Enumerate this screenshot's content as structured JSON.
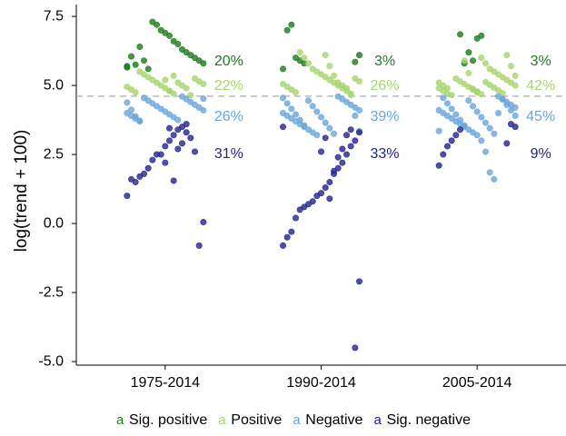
{
  "chart_data": {
    "type": "strip",
    "ylabel": "log(trend + 100)",
    "categories": [
      "1975-2014",
      "1990-2014",
      "2005-2014"
    ],
    "ylim": [
      -5.13,
      7.93
    ],
    "yticks": [
      {
        "value": -5,
        "label": "-5.0"
      },
      -2.5,
      {
        "value": 0,
        "label": "0.0"
      },
      2.5,
      {
        "value": 5,
        "label": "5.0"
      },
      7.5
    ],
    "reference_line": 4.61,
    "legend_key": "a",
    "series": [
      {
        "name": "Sig. positive",
        "color": "#1e7b1e",
        "points": [
          [
            5.7,
            5.8,
            5.9,
            6.0,
            6.1,
            6.2,
            6.3,
            6.5,
            6.6,
            6.8,
            6.9,
            7.0,
            7.2,
            7.3,
            5.6,
            5.9,
            6.4,
            5.75,
            6.05,
            5.65
          ],
          [
            5.8,
            5.9,
            6.0,
            7.2,
            7.0,
            5.6,
            6.1,
            5.85
          ],
          [
            6.8,
            6.7,
            5.9,
            6.2,
            5.8,
            6.85
          ]
        ],
        "values": [
          20,
          3,
          3
        ],
        "value_labels": [
          "20%",
          "3%",
          "3%"
        ]
      },
      {
        "name": "Positive",
        "color": "#a9d46f",
        "points": [
          [
            4.7,
            4.8,
            4.9,
            5.0,
            5.1,
            5.2,
            5.3,
            5.4,
            5.5,
            4.75,
            4.85,
            4.95,
            5.05,
            5.15,
            5.25,
            4.65,
            4.9,
            5.0,
            5.1,
            5.35,
            4.8,
            5.2
          ],
          [
            4.7,
            4.8,
            4.9,
            5.0,
            5.1,
            5.2,
            5.3,
            5.4,
            5.5,
            5.6,
            5.8,
            6.0,
            6.2,
            4.75,
            4.85,
            4.95,
            5.05,
            5.15,
            5.25,
            4.65,
            4.9,
            5.0,
            5.1,
            5.35,
            5.7,
            6.1
          ],
          [
            4.7,
            4.8,
            4.9,
            5.0,
            5.1,
            5.2,
            5.3,
            5.4,
            5.5,
            5.6,
            5.8,
            6.0,
            4.75,
            4.85,
            4.95,
            5.05,
            5.15,
            5.25,
            4.65,
            4.9,
            5.0,
            5.1,
            5.35,
            5.7,
            6.1,
            4.72,
            4.82,
            4.92,
            5.02,
            5.12,
            4.68,
            4.78,
            4.88,
            5.45,
            5.9
          ]
        ],
        "values": [
          22,
          26,
          42
        ],
        "value_labels": [
          "22%",
          "26%",
          "42%"
        ]
      },
      {
        "name": "Negative",
        "color": "#6aa6db",
        "points": [
          [
            3.7,
            3.8,
            3.9,
            4.0,
            4.1,
            4.2,
            4.3,
            4.4,
            4.5,
            4.6,
            3.75,
            3.85,
            3.95,
            4.05,
            4.15,
            4.25,
            4.35,
            4.45,
            4.55,
            3.72,
            3.88,
            4.12,
            4.38,
            4.52
          ],
          [
            3.2,
            3.3,
            3.4,
            3.5,
            3.6,
            3.7,
            3.8,
            3.9,
            4.0,
            4.1,
            4.2,
            4.3,
            4.4,
            4.5,
            4.6,
            3.25,
            3.45,
            3.65,
            3.85,
            4.05,
            4.25,
            4.45,
            3.55,
            3.75,
            3.95,
            4.15,
            4.35,
            4.55,
            3.35,
            3.9
          ],
          [
            1.6,
            1.85,
            2.6,
            3.0,
            3.2,
            3.3,
            3.4,
            3.5,
            3.6,
            3.7,
            3.8,
            3.9,
            4.0,
            4.1,
            4.2,
            4.3,
            4.4,
            4.5,
            4.6,
            3.25,
            3.45,
            3.65,
            3.85,
            4.05,
            4.25,
            4.45,
            3.55,
            3.75,
            3.95,
            4.15,
            4.35,
            4.55,
            3.35,
            3.9,
            4.1,
            4.3,
            4.5,
            4.0
          ]
        ],
        "values": [
          26,
          39,
          45
        ],
        "value_labels": [
          "26%",
          "39%",
          "45%"
        ]
      },
      {
        "name": "Sig. negative",
        "color": "#23238f",
        "points": [
          [
            3.6,
            3.5,
            3.4,
            3.2,
            3.0,
            2.8,
            2.5,
            2.5,
            2.3,
            2.0,
            1.8,
            1.7,
            1.5,
            1.6,
            1.0,
            0.05,
            -0.8,
            2.6,
            3.1,
            3.3,
            2.9,
            2.7,
            1.55,
            3.45,
            2.2
          ],
          [
            3.5,
            3.3,
            3.0,
            2.8,
            2.5,
            2.2,
            2.0,
            1.8,
            1.5,
            1.3,
            1.1,
            1.0,
            0.8,
            0.7,
            0.6,
            0.5,
            0.2,
            -0.3,
            -0.5,
            -0.8,
            -2.1,
            -4.5,
            3.4,
            3.2,
            2.7,
            2.4,
            1.9,
            0.9,
            3.1,
            2.6
          ],
          [
            3.4,
            3.2,
            3.0,
            2.8,
            2.5,
            2.1,
            3.5,
            3.6,
            2.9
          ]
        ],
        "values": [
          31,
          33,
          9
        ],
        "value_labels": [
          "31%",
          "33%",
          "9%"
        ]
      }
    ]
  }
}
